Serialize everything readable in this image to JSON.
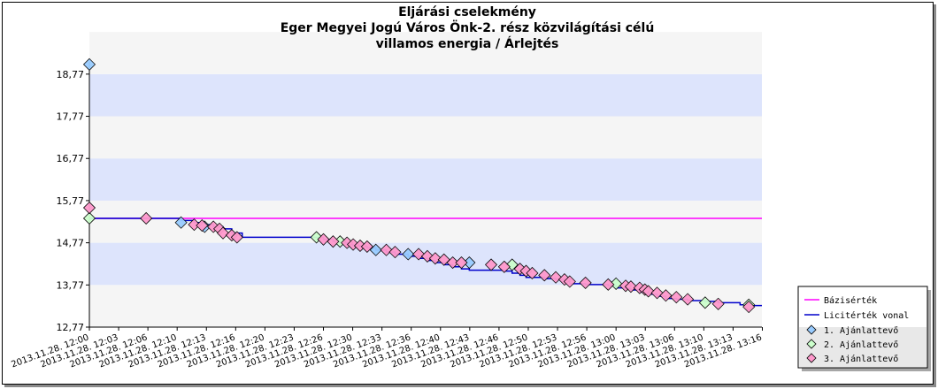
{
  "chart_data": {
    "type": "line",
    "title": [
      "Eljárási cselekmény",
      "Eger Megyei Jogú Város Önk-2. rész közvilágítási célú",
      "villamos energia / Árlejtés"
    ],
    "xlabel": "",
    "ylabel": "",
    "ylim": [
      12.77,
      19.27
    ],
    "xlim_minutes": [
      0,
      77
    ],
    "y_ticks": [
      "12,77",
      "13,77",
      "14,77",
      "15,77",
      "16,77",
      "17,77",
      "18,77"
    ],
    "x_tick_labels": [
      "2013.11.28. 12:00",
      "2013.11.28. 12:03",
      "2013.11.28. 12:06",
      "2013.11.28. 12:10",
      "2013.11.28. 12:13",
      "2013.11.28. 12:16",
      "2013.11.28. 12:20",
      "2013.11.28. 12:23",
      "2013.11.28. 12:26",
      "2013.11.28. 12:30",
      "2013.11.28. 12:33",
      "2013.11.28. 12:36",
      "2013.11.28. 12:40",
      "2013.11.28. 12:43",
      "2013.11.28. 12:46",
      "2013.11.28. 12:50",
      "2013.11.28. 12:53",
      "2013.11.28. 12:56",
      "2013.11.28. 13:00",
      "2013.11.28. 13:03",
      "2013.11.28. 13:06",
      "2013.11.28. 13:10",
      "2013.11.28. 13:13",
      "2013.11.28. 13:16"
    ],
    "x_tick_minutes": [
      0,
      3.35,
      6.7,
      10.05,
      13.4,
      16.75,
      20.1,
      23.45,
      26.8,
      30.15,
      33.5,
      36.85,
      40.2,
      43.55,
      46.9,
      50.25,
      53.6,
      56.95,
      60.3,
      63.65,
      67.0,
      70.35,
      73.7,
      77.05
    ],
    "series": [
      {
        "name": "Bázisérték",
        "color": "#ff00ff",
        "kind": "line",
        "x": [
          0,
          77
        ],
        "y": [
          15.35,
          15.35
        ]
      },
      {
        "name": "Licitérték vonal",
        "color": "#0000cc",
        "kind": "step",
        "x": [
          0,
          6.5,
          10.5,
          12.0,
          13.2,
          14.2,
          15.3,
          16.3,
          17.5,
          26.0,
          26.8,
          27.9,
          28.7,
          29.5,
          30.2,
          31.0,
          31.8,
          32.8,
          34.0,
          35.0,
          36.5,
          37.7,
          38.7,
          39.6,
          40.6,
          41.6,
          42.6,
          43.5,
          46.0,
          47.5,
          48.4,
          49.3,
          50.0,
          52.1,
          53.4,
          54.4,
          55.0,
          56.8,
          57.0,
          59.4,
          60.3,
          61.4,
          62.0,
          63.0,
          64.0,
          65.0,
          66.0,
          67.2,
          68.5,
          70.5,
          72.0,
          74.5,
          75.5
        ],
        "y": [
          15.35,
          15.35,
          15.3,
          15.25,
          15.2,
          15.15,
          15.1,
          15.0,
          14.9,
          14.9,
          14.85,
          14.8,
          14.77,
          14.73,
          14.7,
          14.68,
          14.65,
          14.6,
          14.55,
          14.5,
          14.45,
          14.4,
          14.35,
          14.3,
          14.25,
          14.2,
          14.15,
          14.12,
          14.12,
          14.1,
          14.05,
          14.0,
          13.95,
          13.92,
          13.9,
          13.85,
          13.8,
          13.78,
          13.78,
          13.75,
          13.7,
          13.68,
          13.65,
          13.6,
          13.55,
          13.5,
          13.45,
          13.43,
          13.4,
          13.38,
          13.35,
          13.3,
          13.28
        ]
      },
      {
        "name": "1. Ajánlattevő",
        "color": "#99ccff",
        "kind": "marker",
        "points": [
          [
            0,
            19.0
          ],
          [
            10.5,
            15.25
          ],
          [
            13.2,
            15.15
          ],
          [
            32.8,
            14.6
          ],
          [
            36.5,
            14.5
          ],
          [
            43.5,
            14.3
          ]
        ]
      },
      {
        "name": "2. Ajánlattevő",
        "color": "#ccffcc",
        "kind": "marker",
        "points": [
          [
            0,
            15.35
          ],
          [
            26.0,
            14.9
          ],
          [
            28.7,
            14.8
          ],
          [
            48.4,
            14.25
          ],
          [
            60.3,
            13.8
          ],
          [
            70.5,
            13.35
          ],
          [
            75.5,
            13.3
          ]
        ]
      },
      {
        "name": "3. Ajánlattevő",
        "color": "#ff99cc",
        "kind": "marker",
        "points": [
          [
            0,
            15.6
          ],
          [
            6.5,
            15.35
          ],
          [
            12.0,
            15.2
          ],
          [
            12.9,
            15.18
          ],
          [
            14.2,
            15.15
          ],
          [
            14.9,
            15.1
          ],
          [
            15.3,
            15.0
          ],
          [
            16.3,
            14.95
          ],
          [
            16.9,
            14.9
          ],
          [
            26.8,
            14.85
          ],
          [
            27.9,
            14.8
          ],
          [
            29.5,
            14.77
          ],
          [
            30.2,
            14.73
          ],
          [
            31.0,
            14.7
          ],
          [
            31.8,
            14.68
          ],
          [
            34.0,
            14.6
          ],
          [
            35.0,
            14.55
          ],
          [
            37.7,
            14.5
          ],
          [
            38.7,
            14.45
          ],
          [
            39.6,
            14.4
          ],
          [
            40.6,
            14.37
          ],
          [
            41.6,
            14.3
          ],
          [
            42.6,
            14.3
          ],
          [
            46.0,
            14.25
          ],
          [
            47.5,
            14.2
          ],
          [
            49.3,
            14.15
          ],
          [
            50.0,
            14.1
          ],
          [
            50.7,
            14.05
          ],
          [
            52.1,
            14.0
          ],
          [
            53.4,
            13.95
          ],
          [
            54.4,
            13.9
          ],
          [
            55.0,
            13.85
          ],
          [
            56.8,
            13.82
          ],
          [
            59.4,
            13.78
          ],
          [
            61.4,
            13.75
          ],
          [
            62.0,
            13.73
          ],
          [
            63.0,
            13.7
          ],
          [
            63.6,
            13.66
          ],
          [
            64.0,
            13.62
          ],
          [
            65.0,
            13.58
          ],
          [
            66.0,
            13.52
          ],
          [
            67.2,
            13.48
          ],
          [
            68.5,
            13.43
          ],
          [
            72.0,
            13.32
          ],
          [
            75.5,
            13.25
          ]
        ]
      }
    ],
    "legend": {
      "placement": "bottom-right",
      "entries": [
        "Bázisérték",
        "Licitérték vonal",
        "1. Ajánlattevő",
        "2. Ajánlattevő",
        "3. Ajánlattevő"
      ]
    },
    "band_colors": [
      "#dde4fc",
      "#f5f5f5"
    ],
    "grid": false
  }
}
